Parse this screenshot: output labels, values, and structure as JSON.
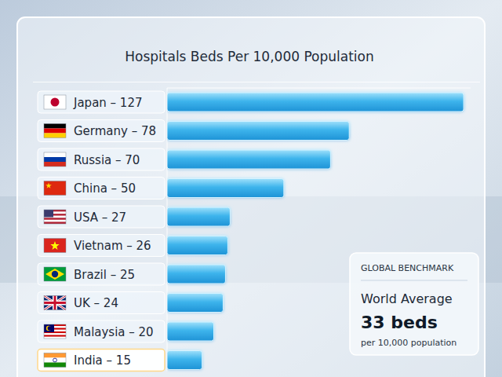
{
  "chart_data": {
    "type": "bar",
    "title": "Hospitals Beds Per 10,000 Population",
    "categories": [
      "Japan – 127",
      "Germany – 78",
      "Russia – 70",
      "China – 50",
      "USA – 27",
      "Vietnam – 26",
      "Brazil – 25",
      "UK – 24",
      "Malaysia – 20",
      "India – 15"
    ],
    "values": [
      127,
      78,
      70,
      50,
      27,
      26,
      25,
      24,
      20,
      15
    ],
    "color": "#3db4ec",
    "orientation": "horizontal",
    "xlim": [
      0,
      130
    ],
    "grid": false,
    "tick_labels": false,
    "annotations": [
      "GLOBAL BENCHMARK",
      "World Average",
      "33 beds",
      "per 10,000 population"
    ]
  }
}
